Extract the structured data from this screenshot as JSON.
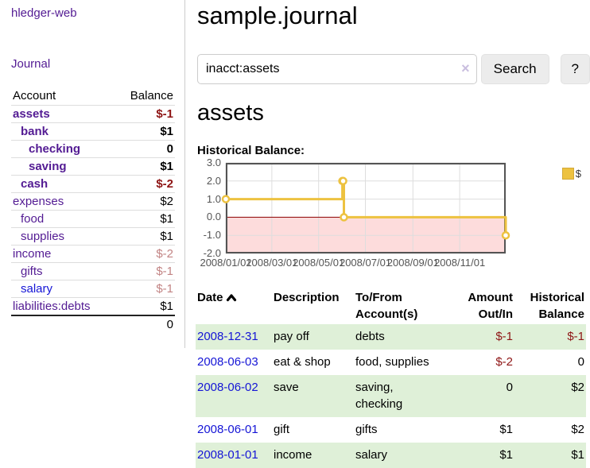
{
  "colors": {
    "link_visited_purple": "#531b93",
    "link_blue": "#1515d6",
    "negative_strong": "#8e1515",
    "negative_soft": "#c28484",
    "row_stripe_green": "#dff0d8",
    "button_gray": "#ececec"
  },
  "sidebar": {
    "app_title": "hledger-web",
    "journal_label": "Journal",
    "accounts_table": {
      "headers": {
        "account": "Account",
        "balance": "Balance"
      },
      "rows": [
        {
          "name": "assets",
          "indent": 0,
          "bold": true,
          "balance": "$-1",
          "balance_style": "neg-strong"
        },
        {
          "name": "bank",
          "indent": 1,
          "bold": true,
          "balance": "$1",
          "balance_style": "pos"
        },
        {
          "name": "checking",
          "indent": 2,
          "bold": true,
          "balance": "0",
          "balance_style": "pos"
        },
        {
          "name": "saving",
          "indent": 2,
          "bold": true,
          "balance": "$1",
          "balance_style": "pos"
        },
        {
          "name": "cash",
          "indent": 1,
          "bold": true,
          "balance": "$-2",
          "balance_style": "neg-strong"
        },
        {
          "name": "expenses",
          "indent": 0,
          "bold": false,
          "balance": "$2",
          "balance_style": "pos"
        },
        {
          "name": "food",
          "indent": 1,
          "bold": false,
          "balance": "$1",
          "balance_style": "pos"
        },
        {
          "name": "supplies",
          "indent": 1,
          "bold": false,
          "balance": "$1",
          "balance_style": "pos"
        },
        {
          "name": "income",
          "indent": 0,
          "bold": false,
          "balance": "$-2",
          "balance_style": "neg-soft"
        },
        {
          "name": "gifts",
          "indent": 1,
          "bold": false,
          "balance": "$-1",
          "balance_style": "neg-soft"
        },
        {
          "name": "salary",
          "indent": 1,
          "bold": false,
          "balance": "$-1",
          "balance_style": "neg-soft",
          "link_style": "unvisited"
        },
        {
          "name": "liabilities:debts",
          "indent": 0,
          "bold": false,
          "balance": "$1",
          "balance_style": "pos"
        }
      ],
      "total": "0"
    }
  },
  "main": {
    "title": "sample.journal",
    "search": {
      "value": "inacct:assets",
      "clear_icon": "×",
      "button_label": "Search",
      "help_label": "?"
    },
    "account_heading": "assets",
    "chart_title": "Historical Balance:"
  },
  "chart_data": {
    "type": "line",
    "title": "Historical Balance:",
    "step": true,
    "x_range": [
      "2008-01-01",
      "2008-12-31"
    ],
    "ylim": [
      -2.0,
      3.0
    ],
    "y_ticks": [
      3.0,
      2.0,
      1.0,
      0.0,
      -1.0,
      -2.0
    ],
    "x_ticks": [
      {
        "date": "2008-01-01",
        "label": "2008/01/01"
      },
      {
        "date": "2008-03-01",
        "label": "2008/03/01"
      },
      {
        "date": "2008-05-01",
        "label": "2008/05/01"
      },
      {
        "date": "2008-07-01",
        "label": "2008/07/01"
      },
      {
        "date": "2008-09-01",
        "label": "2008/09/01"
      },
      {
        "date": "2008-11-01",
        "label": "2008/11/01"
      }
    ],
    "series": [
      {
        "name": "$",
        "color": "#edc240",
        "points": [
          [
            "2008-01-01",
            1
          ],
          [
            "2008-06-01",
            2
          ],
          [
            "2008-06-02",
            2
          ],
          [
            "2008-06-03",
            0
          ],
          [
            "2008-12-31",
            -1
          ]
        ]
      }
    ],
    "negative_fill": "#fddcdc",
    "zero_line_color": "#8b0000",
    "grid_color": "#dddddd",
    "border_color": "#545454",
    "legend_position": "top-right",
    "legend_label": "$"
  },
  "register": {
    "headers": {
      "date": "Date",
      "description": "Description",
      "accounts": "To/From Account(s)",
      "amount": "Amount Out/In",
      "balance": "Historical Balance"
    },
    "rows": [
      {
        "date": "2008-12-31",
        "description": "pay off",
        "accounts": "debts",
        "amount": "$-1",
        "amount_neg": true,
        "balance": "$-1",
        "balance_neg": true
      },
      {
        "date": "2008-06-03",
        "description": "eat & shop",
        "accounts": "food, supplies",
        "amount": "$-2",
        "amount_neg": true,
        "balance": "0",
        "balance_neg": false
      },
      {
        "date": "2008-06-02",
        "description": "save",
        "accounts": "saving, checking",
        "amount": "0",
        "amount_neg": false,
        "balance": "$2",
        "balance_neg": false
      },
      {
        "date": "2008-06-01",
        "description": "gift",
        "accounts": "gifts",
        "amount": "$1",
        "amount_neg": false,
        "balance": "$2",
        "balance_neg": false
      },
      {
        "date": "2008-01-01",
        "description": "income",
        "accounts": "salary",
        "amount": "$1",
        "amount_neg": false,
        "balance": "$1",
        "balance_neg": false
      }
    ]
  }
}
